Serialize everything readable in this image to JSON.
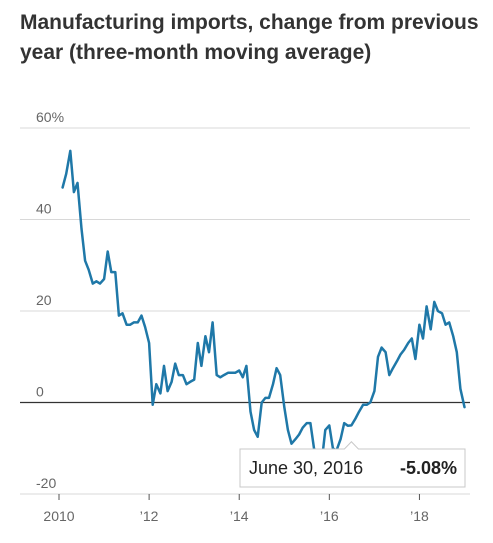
{
  "chart_data": {
    "type": "line",
    "title": "Manufacturing imports, change from previous year (three-month moving average)",
    "xlabel": "",
    "ylabel": "",
    "xlim": [
      2010,
      2019.1
    ],
    "ylim": [
      -20,
      60
    ],
    "y_ticks": [
      {
        "value": 60,
        "label": "60%"
      },
      {
        "value": 40,
        "label": "40"
      },
      {
        "value": 20,
        "label": "20"
      },
      {
        "value": 0,
        "label": "0"
      },
      {
        "value": -20,
        "label": "-20"
      }
    ],
    "x_ticks": [
      {
        "value": 2010,
        "label": "2010"
      },
      {
        "value": 2012,
        "label": "’12"
      },
      {
        "value": 2014,
        "label": "’14"
      },
      {
        "value": 2016,
        "label": "’16"
      },
      {
        "value": 2018,
        "label": "’18"
      }
    ],
    "grid": true,
    "color": "#1f78a8",
    "series": [
      {
        "x": [
          2010.08,
          2010.16,
          2010.25,
          2010.33,
          2010.41,
          2010.5,
          2010.58,
          2010.66,
          2010.75,
          2010.83,
          2010.91,
          2011.0,
          2011.08,
          2011.16,
          2011.25,
          2011.33,
          2011.41,
          2011.5,
          2011.58,
          2011.66,
          2011.75,
          2011.83,
          2011.91,
          2012.0,
          2012.08,
          2012.16,
          2012.25,
          2012.33,
          2012.41,
          2012.5,
          2012.58,
          2012.66,
          2012.75,
          2012.83,
          2012.91,
          2013.0,
          2013.08,
          2013.16,
          2013.25,
          2013.33,
          2013.41,
          2013.5,
          2013.58,
          2013.66,
          2013.75,
          2013.83,
          2013.91,
          2014.0,
          2014.08,
          2014.16,
          2014.25,
          2014.33,
          2014.41,
          2014.5,
          2014.58,
          2014.66,
          2014.75,
          2014.83,
          2014.91,
          2015.0,
          2015.08,
          2015.16,
          2015.25,
          2015.33,
          2015.41,
          2015.5,
          2015.58,
          2015.66,
          2015.75,
          2015.83,
          2015.91,
          2016.0,
          2016.08,
          2016.16,
          2016.25,
          2016.33,
          2016.41,
          2016.49,
          2016.58,
          2016.66,
          2016.75,
          2016.83,
          2016.91,
          2017.0,
          2017.08,
          2017.16,
          2017.25,
          2017.33,
          2017.41,
          2017.5,
          2017.58,
          2017.66,
          2017.75,
          2017.83,
          2017.91,
          2018.0,
          2018.08,
          2018.16,
          2018.25,
          2018.33,
          2018.41,
          2018.5,
          2018.58,
          2018.66,
          2018.75,
          2018.83,
          2018.91,
          2019.0
        ],
        "values": [
          47,
          50,
          55,
          46,
          48,
          38,
          31,
          29,
          26,
          26.5,
          26,
          27,
          33,
          28.5,
          28.5,
          19,
          19.5,
          17,
          17,
          17.5,
          17.5,
          19,
          16.5,
          13,
          -0.5,
          4,
          2,
          8,
          2.5,
          4.5,
          8.5,
          6,
          6,
          4,
          4.5,
          5,
          13,
          8,
          14.5,
          11,
          17.5,
          6,
          5.5,
          6,
          6.5,
          6.5,
          6.5,
          7,
          5.5,
          8,
          -2,
          -6,
          -7.5,
          0,
          1,
          1,
          4,
          7.5,
          6,
          -1,
          -6,
          -9,
          -8,
          -7,
          -5.5,
          -4.5,
          -4.5,
          -10,
          -12,
          -13,
          -6,
          -5,
          -10,
          -10.5,
          -8,
          -4.5,
          -5.08,
          -5,
          -3.5,
          -2,
          -0.5,
          -0.5,
          0,
          2.5,
          10,
          12,
          11,
          6,
          7.5,
          9,
          10.5,
          11.5,
          13,
          14,
          9.5,
          17,
          14,
          21,
          16,
          22,
          20,
          19.5,
          17,
          17.5,
          14.5,
          11,
          3,
          -1
        ]
      }
    ],
    "tooltip": {
      "date": "June 30, 2016",
      "value": "-5.08%",
      "x": 2016.49,
      "y": -5.08
    }
  }
}
